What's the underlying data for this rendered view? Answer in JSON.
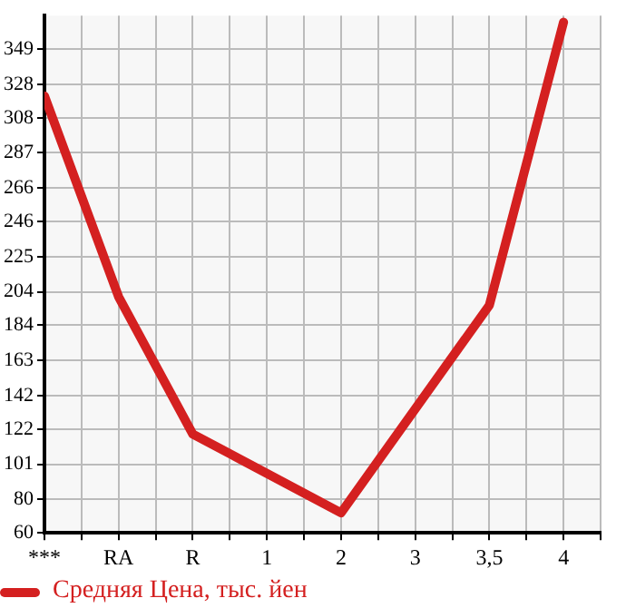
{
  "chart_data": {
    "type": "line",
    "categories": [
      "***",
      "RA",
      "R",
      "1",
      "2",
      "3",
      "3,5",
      "4"
    ],
    "series": [
      {
        "name": "Средняя Цена, тыс. йен",
        "color": "#d42020",
        "values": [
          321,
          201,
          119,
          null,
          72,
          null,
          196,
          365
        ]
      }
    ],
    "ylim": [
      60,
      369
    ],
    "yticks": [
      60,
      80,
      101,
      122,
      142,
      163,
      184,
      204,
      225,
      246,
      266,
      287,
      308,
      328,
      349
    ],
    "grid": true,
    "legend": "bottom left",
    "marker": "none",
    "line_style": "solid"
  }
}
